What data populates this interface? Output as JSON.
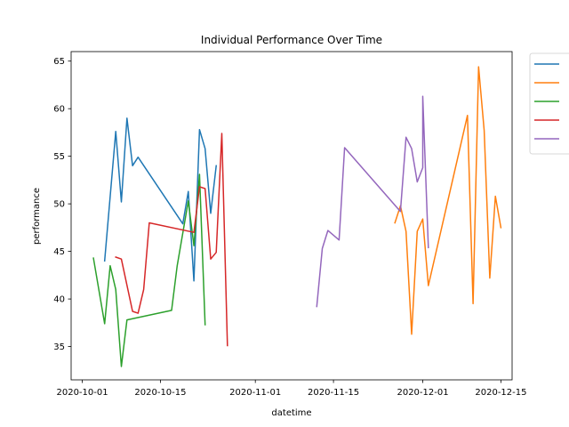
{
  "chart_data": {
    "type": "line",
    "title": "Individual Performance Over Time",
    "xlabel": "datetime",
    "ylabel": "performance",
    "xlim": [
      "2020-09-29",
      "2020-12-17"
    ],
    "ylim": [
      31.5,
      66.0
    ],
    "x_ticks": [
      "2020-10-01",
      "2020-10-15",
      "2020-11-01",
      "2020-11-15",
      "2020-12-01",
      "2020-12-15"
    ],
    "y_ticks": [
      35,
      40,
      45,
      50,
      55,
      60,
      65
    ],
    "grid": false,
    "legend": "outside upper right",
    "series": [
      {
        "color": "#1f77b4",
        "x": [
          "2020-10-05",
          "2020-10-07",
          "2020-10-08",
          "2020-10-09",
          "2020-10-10",
          "2020-10-11",
          "2020-10-19",
          "2020-10-20",
          "2020-10-21",
          "2020-10-22",
          "2020-10-23",
          "2020-10-24",
          "2020-10-25"
        ],
        "values": [
          44.0,
          57.6,
          50.2,
          59.0,
          54.0,
          54.9,
          47.9,
          51.3,
          41.9,
          57.8,
          55.8,
          49.0,
          54.0
        ]
      },
      {
        "color": "#ff7f0e",
        "x": [
          "2020-11-26",
          "2020-11-27",
          "2020-11-28",
          "2020-11-29",
          "2020-11-30",
          "2020-12-01",
          "2020-12-02",
          "2020-12-09",
          "2020-12-10",
          "2020-12-11",
          "2020-12-12",
          "2020-12-13",
          "2020-12-14",
          "2020-12-15"
        ],
        "values": [
          48.0,
          49.8,
          47.1,
          36.3,
          47.1,
          48.4,
          41.4,
          59.3,
          39.5,
          64.4,
          57.7,
          42.2,
          50.8,
          47.5
        ]
      },
      {
        "color": "#2ca02c",
        "x": [
          "2020-10-03",
          "2020-10-05",
          "2020-10-06",
          "2020-10-07",
          "2020-10-08",
          "2020-10-09",
          "2020-10-17",
          "2020-10-18",
          "2020-10-20",
          "2020-10-21",
          "2020-10-22",
          "2020-10-23"
        ],
        "values": [
          44.3,
          37.4,
          43.5,
          41.0,
          32.9,
          37.8,
          38.8,
          43.5,
          50.3,
          45.6,
          53.1,
          37.3
        ]
      },
      {
        "color": "#d62728",
        "x": [
          "2020-10-07",
          "2020-10-08",
          "2020-10-10",
          "2020-10-11",
          "2020-10-12",
          "2020-10-13",
          "2020-10-21",
          "2020-10-22",
          "2020-10-23",
          "2020-10-24",
          "2020-10-25",
          "2020-10-26",
          "2020-10-27"
        ],
        "values": [
          44.4,
          44.2,
          38.7,
          38.5,
          41.0,
          48.0,
          47.0,
          51.8,
          51.6,
          44.2,
          44.9,
          57.4,
          35.1
        ]
      },
      {
        "color": "#9467bd",
        "x": [
          "2020-11-12",
          "2020-11-13",
          "2020-11-14",
          "2020-11-16",
          "2020-11-17",
          "2020-11-27",
          "2020-11-28",
          "2020-11-29",
          "2020-11-30",
          "2020-11-31",
          "2020-12-01",
          "2020-12-02"
        ],
        "values": [
          39.2,
          45.3,
          47.2,
          46.2,
          55.9,
          49.2,
          57.0,
          55.8,
          52.3,
          53.8,
          61.3,
          45.4
        ]
      }
    ]
  }
}
